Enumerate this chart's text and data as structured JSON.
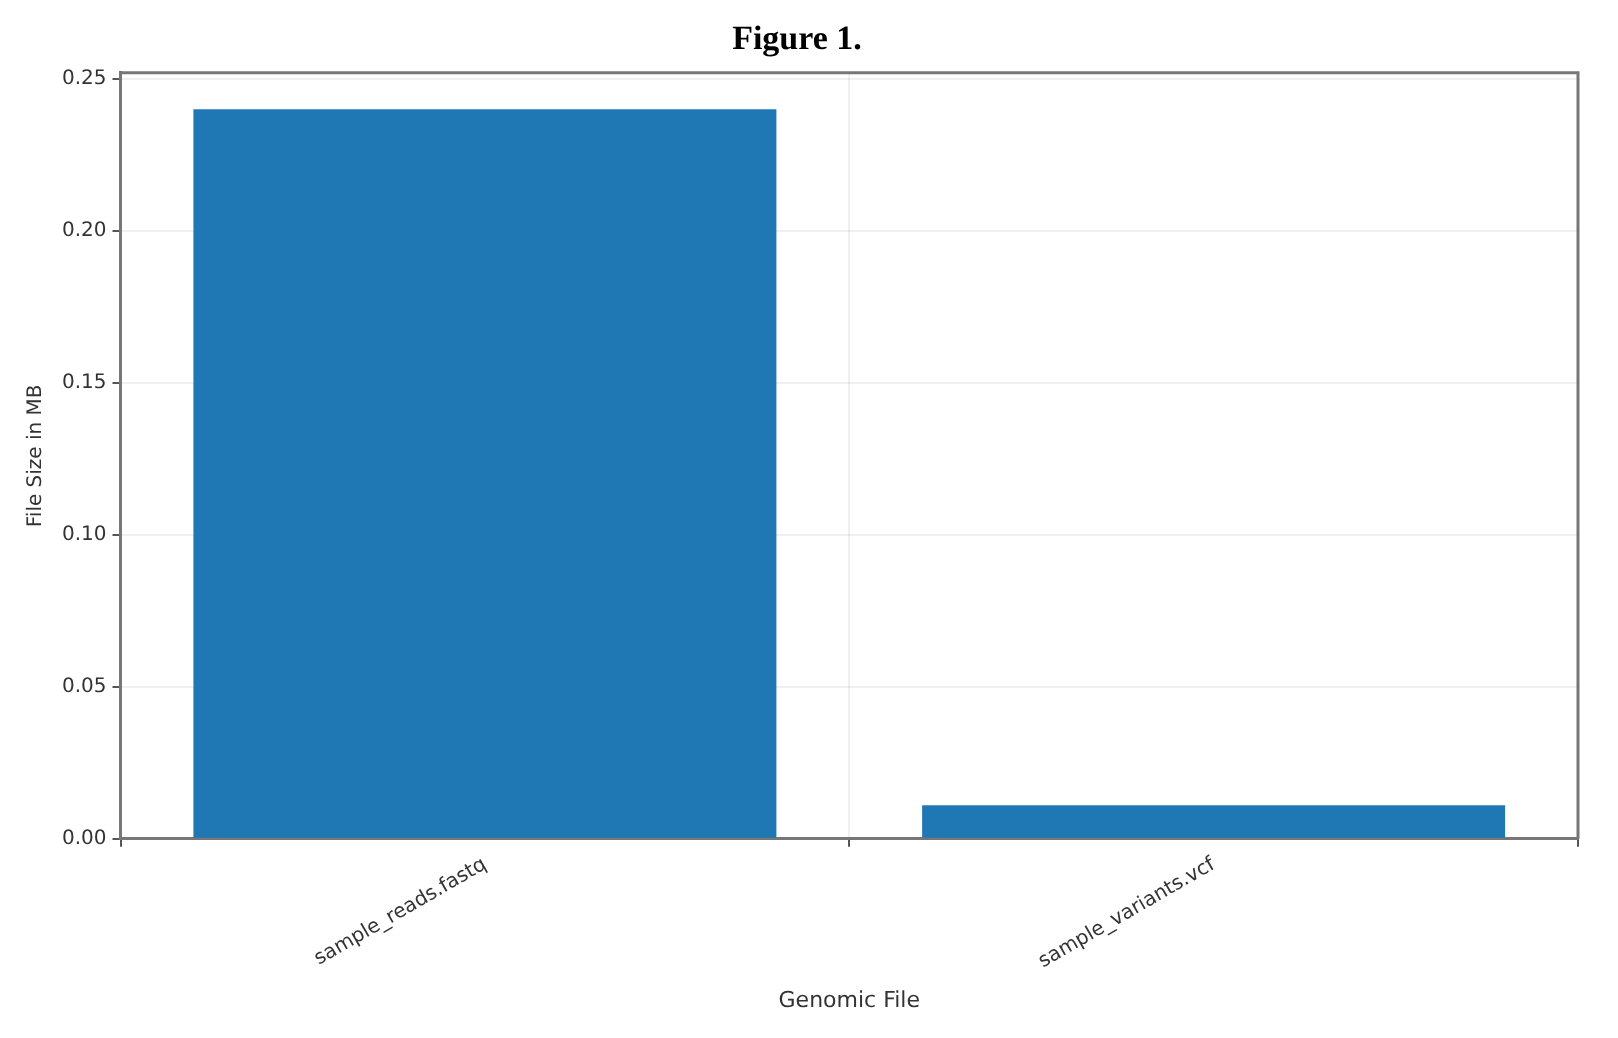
{
  "chart_data": {
    "type": "bar",
    "title": "Figure 1.",
    "xlabel": "Genomic File",
    "ylabel": "File Size in MB",
    "categories": [
      "sample_reads.fastq",
      "sample_variants.vcf"
    ],
    "values": [
      0.24,
      0.011
    ],
    "color": "#1f77b4",
    "ylim": [
      0,
      0.252
    ],
    "yticks": [
      {
        "value": 0,
        "label": "0.00"
      },
      {
        "value": 0.05,
        "label": "0.05"
      },
      {
        "value": 0.1,
        "label": "0.10"
      },
      {
        "value": 0.15,
        "label": "0.15"
      },
      {
        "value": 0.2,
        "label": "0.20"
      },
      {
        "value": 0.25,
        "label": "0.25"
      }
    ],
    "grid": true
  }
}
